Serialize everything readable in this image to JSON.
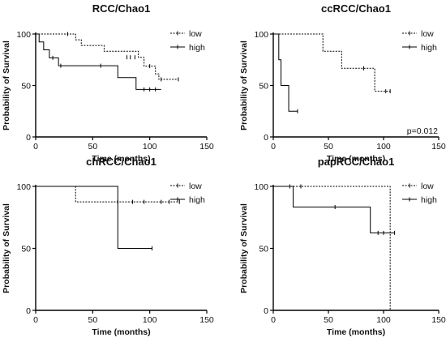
{
  "chart_data": [
    {
      "type": "line",
      "title": "RCC/Chao1",
      "xlabel": "Time (months)",
      "ylabel": "Probability of Survival",
      "xlim": [
        0,
        150
      ],
      "ylim": [
        0,
        100
      ],
      "xticks": [
        0,
        50,
        100,
        150
      ],
      "yticks": [
        0,
        50,
        100
      ],
      "legend_position": "top-right",
      "annotation": "",
      "series": [
        {
          "name": "low",
          "style": "dotted",
          "steps": [
            [
              0,
              100
            ],
            [
              35,
              94.4
            ],
            [
              40,
              88.9
            ],
            [
              60,
              83.3
            ],
            [
              90,
              77.4
            ],
            [
              95,
              68.8
            ],
            [
              105,
              61.2
            ],
            [
              108,
              56
            ]
          ],
          "censors": [
            [
              28,
              100
            ],
            [
              80,
              77.4
            ],
            [
              83,
              77.4
            ],
            [
              87,
              77.4
            ],
            [
              100,
              68.8
            ],
            [
              110,
              56
            ],
            [
              125,
              56
            ]
          ],
          "end": 125
        },
        {
          "name": "high",
          "style": "solid",
          "steps": [
            [
              0,
              100
            ],
            [
              3,
              92.3
            ],
            [
              7,
              84.6
            ],
            [
              12,
              76.9
            ],
            [
              20,
              69.2
            ],
            [
              72,
              57.7
            ],
            [
              88,
              46.2
            ]
          ],
          "censors": [
            [
              15,
              76.9
            ],
            [
              22,
              69.2
            ],
            [
              57,
              69.2
            ],
            [
              95,
              46.2
            ],
            [
              100,
              46.2
            ],
            [
              105,
              46.2
            ]
          ],
          "end": 110
        }
      ]
    },
    {
      "type": "line",
      "title": "ccRCC/Chao1",
      "xlabel": "Time (months)",
      "ylabel": "Probability of Survival",
      "xlim": [
        0,
        150
      ],
      "ylim": [
        0,
        100
      ],
      "xticks": [
        0,
        50,
        100,
        150
      ],
      "yticks": [
        0,
        50,
        100
      ],
      "legend_position": "top-right",
      "annotation": "p=0.012",
      "series": [
        {
          "name": "low",
          "style": "dotted",
          "steps": [
            [
              0,
              100
            ],
            [
              45,
              83.3
            ],
            [
              62,
              66.7
            ],
            [
              92,
              44.4
            ]
          ],
          "censors": [
            [
              82,
              66.7
            ],
            [
              102,
              44.4
            ],
            [
              106,
              44.4
            ]
          ],
          "end": 106
        },
        {
          "name": "high",
          "style": "solid",
          "steps": [
            [
              0,
              100
            ],
            [
              5,
              75
            ],
            [
              7,
              50
            ],
            [
              14,
              25
            ]
          ],
          "censors": [
            [
              22,
              25
            ]
          ],
          "end": 22
        }
      ]
    },
    {
      "type": "line",
      "title": "chRCC/Chao1",
      "xlabel": "Time (months)",
      "ylabel": "Probability of Survival",
      "xlim": [
        0,
        150
      ],
      "ylim": [
        0,
        100
      ],
      "xticks": [
        0,
        50,
        100,
        150
      ],
      "yticks": [
        0,
        50,
        100
      ],
      "legend_position": "top-right",
      "annotation": "",
      "series": [
        {
          "name": "low",
          "style": "dotted",
          "steps": [
            [
              0,
              100
            ],
            [
              35,
              87.5
            ]
          ],
          "censors": [
            [
              72,
              87.5
            ],
            [
              85,
              87.5
            ],
            [
              95,
              87.5
            ],
            [
              110,
              87.5
            ],
            [
              117,
              87.5
            ],
            [
              126,
              87.5
            ]
          ],
          "end": 126
        },
        {
          "name": "high",
          "style": "solid",
          "steps": [
            [
              0,
              100
            ],
            [
              72,
              50
            ]
          ],
          "censors": [
            [
              102,
              50
            ]
          ],
          "end": 102
        }
      ]
    },
    {
      "type": "line",
      "title": "papRCC/Chao1",
      "xlabel": "Time (months)",
      "ylabel": "Probability of Survival",
      "xlim": [
        0,
        150
      ],
      "ylim": [
        0,
        100
      ],
      "xticks": [
        0,
        50,
        100,
        150
      ],
      "yticks": [
        0,
        50,
        100
      ],
      "legend_position": "top-right",
      "annotation": "",
      "series": [
        {
          "name": "low",
          "style": "dotted",
          "steps": [
            [
              0,
              100
            ],
            [
              106,
              0
            ]
          ],
          "censors": [
            [
              15,
              100
            ],
            [
              25,
              100
            ]
          ],
          "end": 106
        },
        {
          "name": "high",
          "style": "solid",
          "steps": [
            [
              0,
              100
            ],
            [
              18,
              83.3
            ],
            [
              88,
              62.5
            ]
          ],
          "censors": [
            [
              56,
              83.3
            ],
            [
              95,
              62.5
            ],
            [
              100,
              62.5
            ],
            [
              110,
              62.5
            ]
          ],
          "end": 110
        }
      ]
    }
  ]
}
